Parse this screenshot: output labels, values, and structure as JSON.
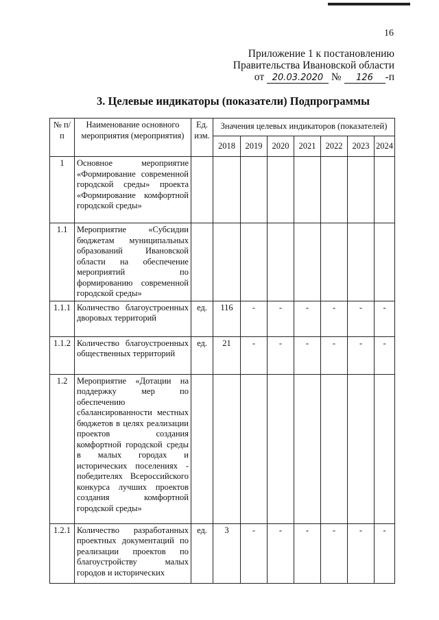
{
  "page_number": "16",
  "header": {
    "line1": "Приложение 1 к постановлению",
    "line2": "Правительства Ивановской области",
    "date_prefix": "от",
    "date": "20.03.2020",
    "number_prefix": "№",
    "number": "126",
    "number_suffix": "-п"
  },
  "title": "3. Целевые индикаторы (показатели) Подпрограммы",
  "table": {
    "columns": {
      "num": "№ п/п",
      "name": "Наименование основного мероприятия (мероприятия)",
      "unit": "Ед. изм.",
      "values_group": "Значения целевых индикаторов (показателей)",
      "years": [
        "2018",
        "2019",
        "2020",
        "2021",
        "2022",
        "2023",
        "2024"
      ]
    },
    "rows": [
      {
        "num": "1",
        "name": "Основное мероприятие «Формирование современной городской среды» проекта «Формирование комфортной городской среды»",
        "unit": "",
        "values": [
          "",
          "",
          "",
          "",
          "",
          "",
          ""
        ]
      },
      {
        "num": "1.1",
        "name": "Мероприятие «Субсидии бюджетам муниципальных образований Ивановской области на обеспечение мероприятий по формированию современной городской среды»",
        "unit": "",
        "values": [
          "",
          "",
          "",
          "",
          "",
          "",
          ""
        ]
      },
      {
        "num": "1.1.1",
        "name": "Количество благоустроенных дворовых территорий",
        "unit": "ед.",
        "values": [
          "116",
          "-",
          "-",
          "-",
          "-",
          "-",
          "-"
        ]
      },
      {
        "num": "1.1.2",
        "name": "Количество благоустроенных общественных территорий",
        "unit": "ед.",
        "values": [
          "21",
          "-",
          "-",
          "-",
          "-",
          "-",
          "-"
        ]
      },
      {
        "num": "1.2",
        "name": "Мероприятие «Дотации на поддержку мер по обеспечению сбалансированности местных бюджетов в целях реализации проектов создания комфортной городской среды в малых городах и исторических поселениях - победителях Всероссийского конкурса лучших проектов создания комфортной городской среды»",
        "unit": "",
        "values": [
          "",
          "",
          "",
          "",
          "",
          "",
          ""
        ]
      },
      {
        "num": "1.2.1",
        "name": "Количество разработанных проектных документаций по реализации проектов по благоустройству малых городов и исторических",
        "unit": "ед.",
        "values": [
          "3",
          "-",
          "-",
          "-",
          "-",
          "-",
          "-"
        ]
      }
    ]
  }
}
